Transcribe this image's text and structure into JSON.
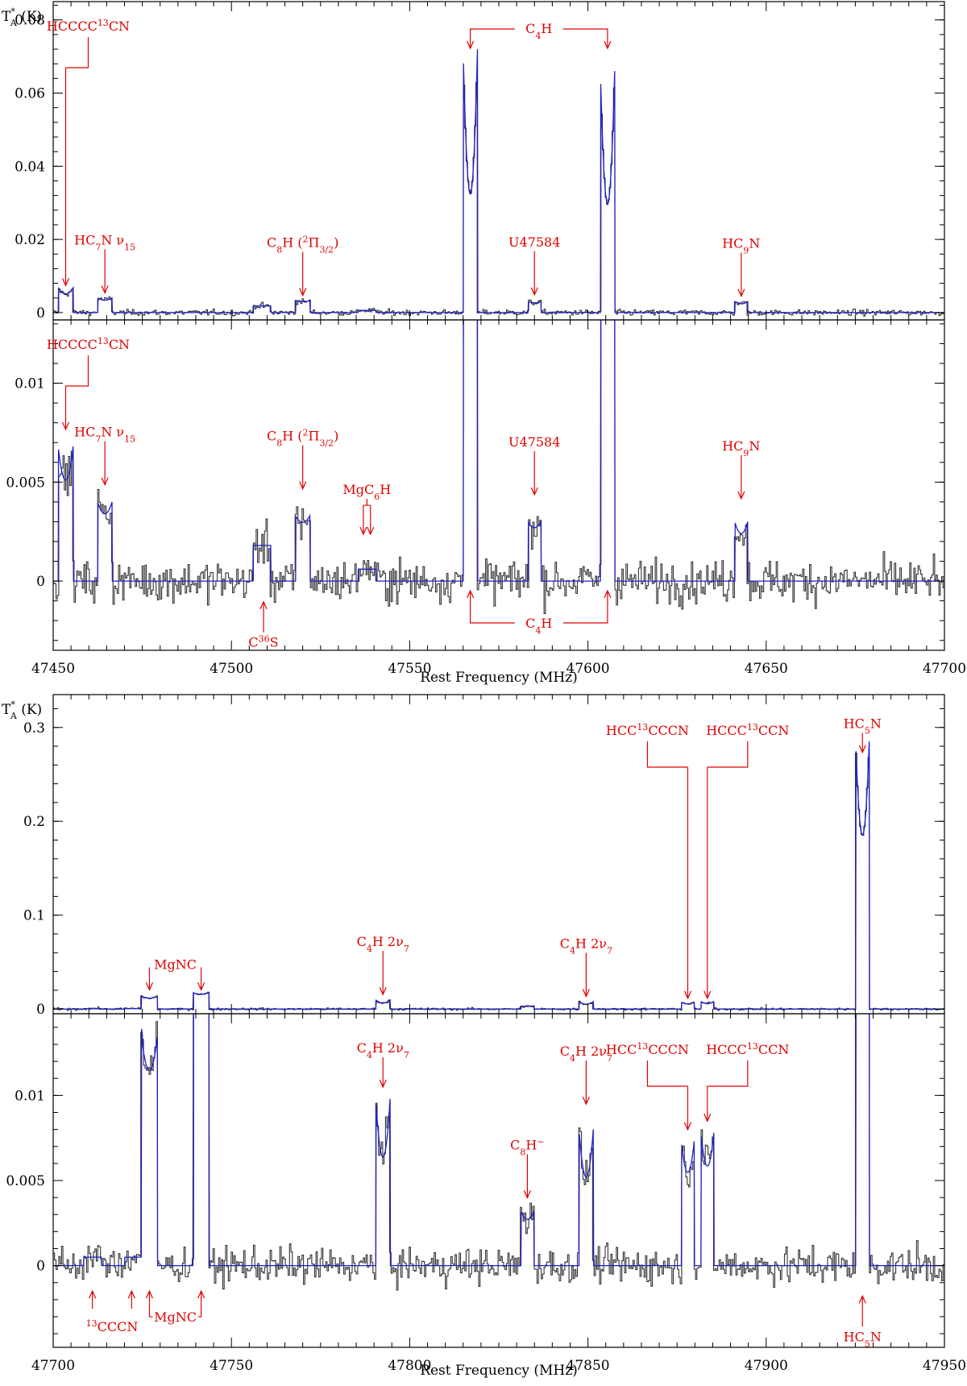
{
  "chart_data": [
    {
      "type": "line",
      "panel": "top",
      "xlabel": "Rest Frequency (MHz)",
      "ylabel": "T*A (K)",
      "xlim": [
        47450,
        47700
      ],
      "xticks": [
        "47450",
        "47500",
        "47550",
        "47600",
        "47650",
        "47700"
      ],
      "sub_panels": [
        {
          "ylim": [
            -0.002,
            0.085
          ],
          "yticks": [
            {
              "v": 0,
              "t": "0"
            },
            {
              "v": 0.02,
              "t": "0.02"
            },
            {
              "v": 0.04,
              "t": "0.04"
            },
            {
              "v": 0.06,
              "t": "0.06"
            },
            {
              "v": 0.08,
              "t": "0.08"
            }
          ],
          "noise": 0.0008
        },
        {
          "ylim": [
            -0.0035,
            0.0132
          ],
          "yticks": [
            {
              "v": 0,
              "t": "0"
            },
            {
              "v": 0.005,
              "t": "0.005"
            },
            {
              "v": 0.01,
              "t": "0.01"
            }
          ],
          "noise": 0.0011
        }
      ],
      "features": [
        {
          "center": 47453.5,
          "width": 4.2,
          "peak": 0.0068,
          "dip": 0.25
        },
        {
          "center": 47464.5,
          "width": 4.0,
          "peak": 0.004,
          "dip": 0.15
        },
        {
          "center": 47508.5,
          "width": 5.0,
          "peak": 0.0018,
          "dip": 0.0
        },
        {
          "center": 47520.0,
          "width": 4.0,
          "peak": 0.0033,
          "dip": 0.1
        },
        {
          "center": 47538.0,
          "width": 5.0,
          "peak": 0.0006,
          "dip": 0.0
        },
        {
          "center": 47567.0,
          "width": 4.0,
          "peak": 0.072,
          "dip": 0.55
        },
        {
          "center": 47585.0,
          "width": 3.6,
          "peak": 0.003,
          "dip": 0.1
        },
        {
          "center": 47605.5,
          "width": 4.0,
          "peak": 0.066,
          "dip": 0.55
        },
        {
          "center": 47643.0,
          "width": 3.6,
          "peak": 0.003,
          "dip": 0.2
        }
      ],
      "annotations_upper": [
        {
          "name": "HCCCC13CN",
          "segs": [
            [
              "HCCCC",
              ""
            ],
            [
              "13",
              "sup"
            ],
            [
              "CN",
              ""
            ]
          ],
          "x": 47453.5,
          "y_data": 0.0065,
          "layout": "bracket-left"
        },
        {
          "name": "HC7N v15",
          "segs": [
            [
              "HC",
              ""
            ],
            [
              "7",
              "sub"
            ],
            [
              "N  ν",
              ""
            ],
            [
              "15",
              "sub"
            ]
          ],
          "x": 47464.5,
          "y_data": 0.0045,
          "layout": "simple"
        },
        {
          "name": "C8H 2Pi3/2",
          "segs": [
            [
              "C",
              ""
            ],
            [
              "8",
              "sub"
            ],
            [
              "H (",
              ""
            ],
            [
              "2",
              "sup"
            ],
            [
              "Π",
              ""
            ],
            [
              "3/2",
              "sub"
            ],
            [
              ")",
              ""
            ]
          ],
          "x": 47520.0,
          "y_data": 0.0038,
          "layout": "simple"
        },
        {
          "name": "C4H",
          "segs": [
            [
              "C",
              ""
            ],
            [
              "4",
              "sub"
            ],
            [
              "H",
              ""
            ]
          ],
          "x": 47567.0,
          "x2": 47605.5,
          "y_data": 0.0,
          "layout": "pair-top"
        },
        {
          "name": "U47584",
          "segs": [
            [
              "U47584",
              ""
            ]
          ],
          "x": 47585.0,
          "y_data": 0.004,
          "layout": "simple"
        },
        {
          "name": "HC9N",
          "segs": [
            [
              "HC",
              ""
            ],
            [
              "9",
              "sub"
            ],
            [
              "N",
              ""
            ]
          ],
          "x": 47643.0,
          "y_data": 0.0036,
          "layout": "simple"
        }
      ],
      "annotations_lower": [
        {
          "name": "HCCCC13CN",
          "segs": [
            [
              "HCCCC",
              ""
            ],
            [
              "13",
              "sup"
            ],
            [
              "CN",
              ""
            ]
          ],
          "x": 47453.5,
          "y_data": 0.0075,
          "layout": "bracket-left"
        },
        {
          "name": "HC7N v15",
          "segs": [
            [
              "HC",
              ""
            ],
            [
              "7",
              "sub"
            ],
            [
              "N  ν",
              ""
            ],
            [
              "15",
              "sub"
            ]
          ],
          "x": 47464.5,
          "y_data": 0.0047,
          "layout": "simple"
        },
        {
          "name": "C8H 2Pi3/2",
          "segs": [
            [
              "C",
              ""
            ],
            [
              "8",
              "sub"
            ],
            [
              "H (",
              ""
            ],
            [
              "2",
              "sup"
            ],
            [
              "Π",
              ""
            ],
            [
              "3/2",
              "sub"
            ],
            [
              ")",
              ""
            ]
          ],
          "x": 47520.0,
          "y_data": 0.0045,
          "layout": "simple"
        },
        {
          "name": "MgC6H",
          "segs": [
            [
              "MgC",
              ""
            ],
            [
              "6",
              "sub"
            ],
            [
              "H",
              ""
            ]
          ],
          "x": 47537.0,
          "x2": 47539.0,
          "y_data": 0.0022,
          "layout": "doublet"
        },
        {
          "name": "U47584",
          "segs": [
            [
              "U47584",
              ""
            ]
          ],
          "x": 47585.0,
          "y_data": 0.0042,
          "layout": "simple"
        },
        {
          "name": "HC9N",
          "segs": [
            [
              "HC",
              ""
            ],
            [
              "9",
              "sub"
            ],
            [
              "N",
              ""
            ]
          ],
          "x": 47643.0,
          "y_data": 0.004,
          "layout": "simple"
        },
        {
          "name": "C36S",
          "segs": [
            [
              "C",
              ""
            ],
            [
              "36",
              "sup"
            ],
            [
              "S",
              ""
            ]
          ],
          "x": 47509.0,
          "y_data": -0.0008,
          "layout": "below"
        },
        {
          "name": "C4H",
          "segs": [
            [
              "C",
              ""
            ],
            [
              "4",
              "sub"
            ],
            [
              "H",
              ""
            ]
          ],
          "x": 47567.0,
          "x2": 47605.5,
          "y_data": -0.001,
          "layout": "pair-bottom"
        }
      ]
    },
    {
      "type": "line",
      "panel": "bottom",
      "xlabel": "Rest Frequency (MHz)",
      "ylabel": "T*A (K)",
      "xlim": [
        47700,
        47950
      ],
      "xticks": [
        "47700",
        "47750",
        "47800",
        "47850",
        "47900",
        "47950"
      ],
      "sub_panels": [
        {
          "ylim": [
            -0.005,
            0.335
          ],
          "yticks": [
            {
              "v": 0,
              "t": "0"
            },
            {
              "v": 0.1,
              "t": "0.1"
            },
            {
              "v": 0.2,
              "t": "0.2"
            },
            {
              "v": 0.3,
              "t": "0.3"
            }
          ],
          "noise": 0.0012
        },
        {
          "ylim": [
            -0.0048,
            0.0148
          ],
          "yticks": [
            {
              "v": 0,
              "t": "0"
            },
            {
              "v": 0.005,
              "t": "0.005"
            },
            {
              "v": 0.01,
              "t": "0.01"
            }
          ],
          "noise": 0.0011
        }
      ],
      "features": [
        {
          "center": 47711.0,
          "width": 5.0,
          "peak": 0.0005,
          "dip": 0.0
        },
        {
          "center": 47722.5,
          "width": 5.0,
          "peak": 0.0005,
          "dip": 0.0
        },
        {
          "center": 47727.0,
          "width": 4.5,
          "peak": 0.0135,
          "dip": 0.15
        },
        {
          "center": 47741.5,
          "width": 4.5,
          "peak": 0.0175,
          "dip": 0.1
        },
        {
          "center": 47792.5,
          "width": 4.0,
          "peak": 0.0098,
          "dip": 0.35
        },
        {
          "center": 47833.0,
          "width": 3.6,
          "peak": 0.0032,
          "dip": 0.15
        },
        {
          "center": 47849.5,
          "width": 4.0,
          "peak": 0.008,
          "dip": 0.35
        },
        {
          "center": 47878.0,
          "width": 3.6,
          "peak": 0.0073,
          "dip": 0.25
        },
        {
          "center": 47883.5,
          "width": 3.6,
          "peak": 0.0078,
          "dip": 0.25
        },
        {
          "center": 47927.0,
          "width": 3.8,
          "peak": 0.285,
          "dip": 0.35
        }
      ],
      "annotations_upper": [
        {
          "name": "MgNC",
          "segs": [
            [
              "MgNC",
              ""
            ]
          ],
          "x": 47727.0,
          "x2": 47741.5,
          "y_data": 0.017,
          "layout": "pair-label-mid"
        },
        {
          "name": "C4H 2v7 a",
          "segs": [
            [
              "C",
              ""
            ],
            [
              "4",
              "sub"
            ],
            [
              "H  2ν",
              ""
            ],
            [
              "7",
              "sub"
            ]
          ],
          "x": 47792.5,
          "y_data": 0.012,
          "layout": "simple"
        },
        {
          "name": "C4H 2v7 b",
          "segs": [
            [
              "C",
              ""
            ],
            [
              "4",
              "sub"
            ],
            [
              "H  2ν",
              ""
            ],
            [
              "7",
              "sub"
            ]
          ],
          "x": 47849.5,
          "y_data": 0.01,
          "layout": "simple"
        },
        {
          "name": "HCC13CCCN",
          "segs": [
            [
              "HCC",
              ""
            ],
            [
              "13",
              "sup"
            ],
            [
              "CCCN",
              ""
            ]
          ],
          "x": 47878.0,
          "y_data": 0.008,
          "layout": "bracket-right-label-left"
        },
        {
          "name": "HCCC13CCN",
          "segs": [
            [
              "HCCC",
              ""
            ],
            [
              "13",
              "sup"
            ],
            [
              "CCN",
              ""
            ]
          ],
          "x": 47883.5,
          "y_data": 0.008,
          "layout": "bracket-left-label-right"
        },
        {
          "name": "HC5N",
          "segs": [
            [
              "HC",
              ""
            ],
            [
              "5",
              "sub"
            ],
            [
              "N",
              ""
            ]
          ],
          "x": 47927.0,
          "y_data": 0.27,
          "layout": "short"
        }
      ],
      "annotations_lower": [
        {
          "name": "C4H 2v7 a",
          "segs": [
            [
              "C",
              ""
            ],
            [
              "4",
              "sub"
            ],
            [
              "H  2ν",
              ""
            ],
            [
              "7",
              "sub"
            ]
          ],
          "x": 47792.5,
          "y_data": 0.0103,
          "layout": "simple"
        },
        {
          "name": "C4H 2v7 b",
          "segs": [
            [
              "C",
              ""
            ],
            [
              "4",
              "sub"
            ],
            [
              "H  2ν",
              ""
            ],
            [
              "7",
              "sub"
            ]
          ],
          "x": 47849.5,
          "y_data": 0.0093,
          "layout": "simple"
        },
        {
          "name": "C8H-",
          "segs": [
            [
              "C",
              ""
            ],
            [
              "8",
              "sub"
            ],
            [
              "H",
              ""
            ],
            [
              "−",
              "sup"
            ]
          ],
          "x": 47833.0,
          "y_data": 0.0038,
          "layout": "simple"
        },
        {
          "name": "HCC13CCCN",
          "segs": [
            [
              "HCC",
              ""
            ],
            [
              "13",
              "sup"
            ],
            [
              "CCCN",
              ""
            ]
          ],
          "x": 47878.0,
          "y_data": 0.0078,
          "layout": "bracket-right-label-left"
        },
        {
          "name": "HCCC13CCN",
          "segs": [
            [
              "HCCC",
              ""
            ],
            [
              "13",
              "sup"
            ],
            [
              "CCN",
              ""
            ]
          ],
          "x": 47883.5,
          "y_data": 0.0083,
          "layout": "bracket-left-label-right"
        },
        {
          "name": "13CCCN",
          "segs": [
            [
              "13",
              "sup"
            ],
            [
              "CCCN",
              ""
            ]
          ],
          "x": 47711.0,
          "x2": 47722.0,
          "y_data": -0.0013,
          "layout": "pair-below-left"
        },
        {
          "name": "MgNC",
          "segs": [
            [
              "MgNC",
              ""
            ]
          ],
          "x": 47727.0,
          "x2": 47741.5,
          "y_data": -0.0013,
          "layout": "pair-below-mid"
        },
        {
          "name": "HC5N",
          "segs": [
            [
              "HC",
              ""
            ],
            [
              "5",
              "sub"
            ],
            [
              "N",
              ""
            ]
          ],
          "x": 47927.0,
          "y_data": -0.0015,
          "layout": "below"
        }
      ]
    }
  ]
}
